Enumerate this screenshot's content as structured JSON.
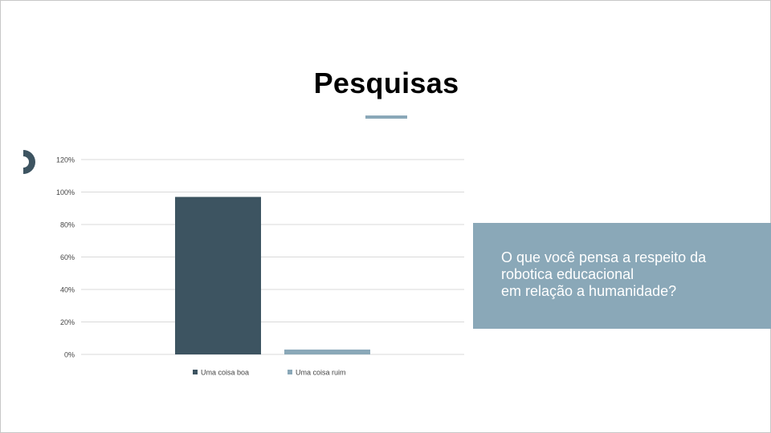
{
  "slide": {
    "title": "Pesquisas",
    "question": "O que você pensa a respeito da\nrobotica educacional\nem relação a humanidade?"
  },
  "colors": {
    "accent": "#8aa8b8",
    "dark": "#3d5461",
    "grid": "#d9d9d9"
  },
  "chart_data": {
    "type": "bar",
    "title": "",
    "xlabel": "",
    "ylabel": "",
    "ylim": [
      0,
      120
    ],
    "yticks": [
      0,
      20,
      40,
      60,
      80,
      100,
      120
    ],
    "ytick_labels": [
      "0%",
      "20%",
      "40%",
      "60%",
      "80%",
      "100%",
      "120%"
    ],
    "grid": true,
    "legend_position": "bottom",
    "series": [
      {
        "name": "Uma coisa boa",
        "value": 97,
        "color": "#3d5461"
      },
      {
        "name": "Uma coisa ruim",
        "value": 3,
        "color": "#8aa8b8"
      }
    ]
  }
}
